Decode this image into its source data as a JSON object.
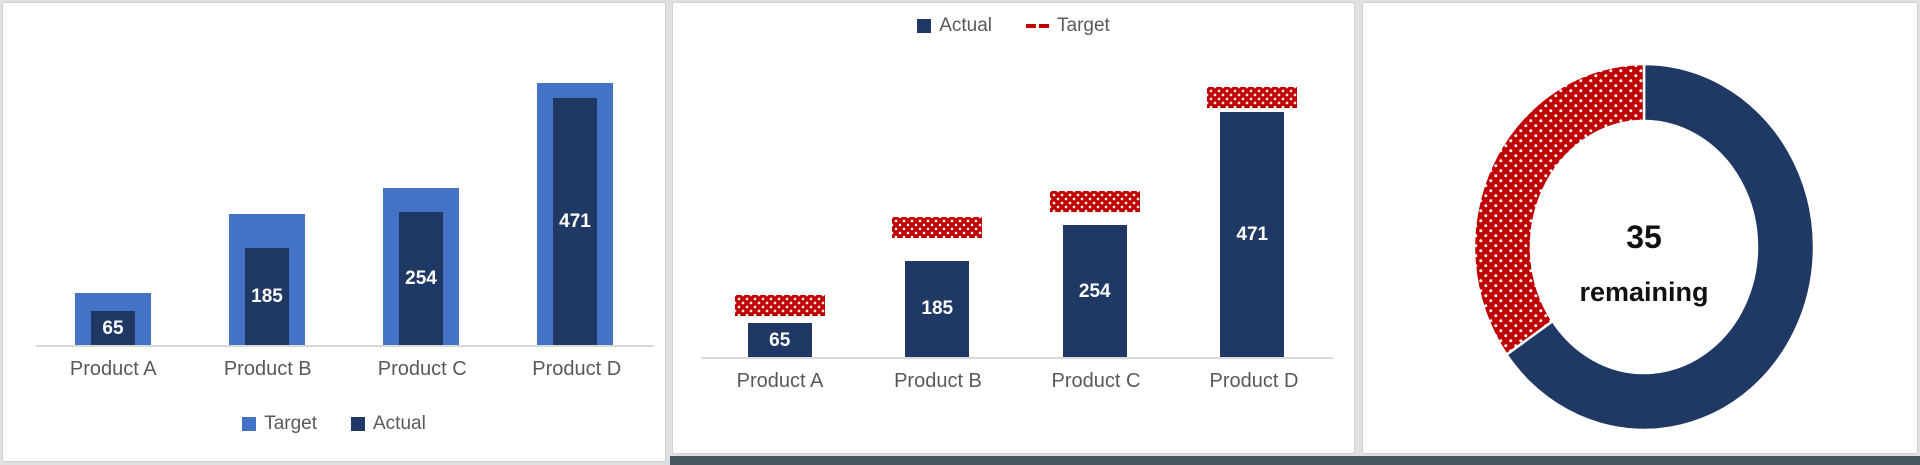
{
  "colors": {
    "navy": "#1F3864",
    "blue": "#4472C4",
    "red": "#C00000",
    "label_gray": "#595959",
    "axis_gray": "#D9D9D9",
    "strip": "#44575E"
  },
  "chart_data": [
    {
      "type": "bar",
      "variant": "overlapped-target-actual",
      "categories": [
        "Product A",
        "Product B",
        "Product C",
        "Product D"
      ],
      "series": [
        {
          "name": "Target",
          "values": [
            100,
            250,
            300,
            500
          ],
          "color": "#4472C4",
          "swatch": "square"
        },
        {
          "name": "Actual",
          "values": [
            65,
            185,
            254,
            471
          ],
          "color": "#1F3864",
          "swatch": "square"
        }
      ],
      "data_labels": {
        "series": "Actual",
        "values": [
          "65",
          "185",
          "254",
          "471"
        ]
      },
      "legend_position": "bottom",
      "ylim": [
        0,
        550
      ],
      "grid": false,
      "xlabel": "",
      "ylabel": "",
      "title": ""
    },
    {
      "type": "bar",
      "variant": "columns-with-target-markers",
      "categories": [
        "Product A",
        "Product B",
        "Product C",
        "Product D"
      ],
      "series": [
        {
          "name": "Actual",
          "values": [
            65,
            185,
            254,
            471
          ],
          "color": "#1F3864",
          "swatch": "square"
        },
        {
          "name": "Target",
          "values": [
            100,
            250,
            300,
            500
          ],
          "color": "#C00000",
          "swatch": "dash",
          "pattern": "white-dots"
        }
      ],
      "data_labels": {
        "series": "Actual",
        "values": [
          "65",
          "185",
          "254",
          "471"
        ]
      },
      "legend_position": "top",
      "ylim": [
        0,
        520
      ],
      "grid": false,
      "xlabel": "",
      "ylabel": "",
      "title": ""
    },
    {
      "type": "donut",
      "variant": "progress-gauge",
      "slices": [
        {
          "value": 65,
          "color": "#1F3864"
        },
        {
          "value": 35,
          "color": "#C00000",
          "pattern": "white-dots"
        }
      ],
      "start_angle_deg": 0,
      "direction": "clockwise",
      "center_value": "35",
      "center_label": "remaining",
      "title": ""
    }
  ]
}
